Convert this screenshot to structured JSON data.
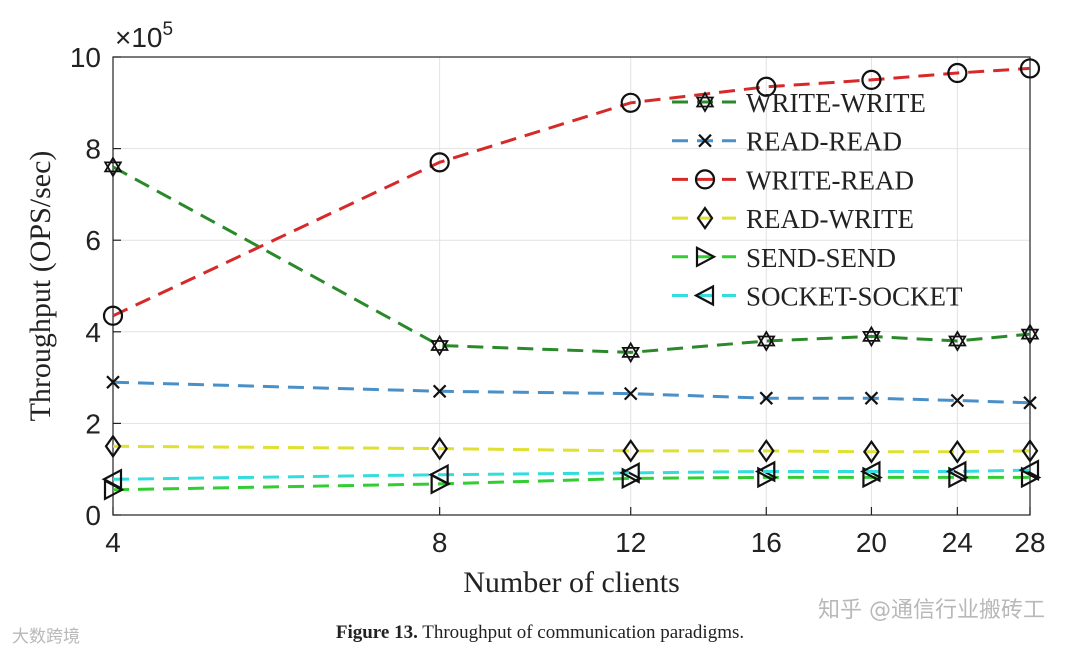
{
  "figure_caption": {
    "label": "Figure 13.",
    "text": "Throughput of communication paradigms."
  },
  "watermarks": {
    "left": "大数跨境",
    "right": "知乎 @通信行业搬砖工"
  },
  "chart_data": {
    "type": "line",
    "title": "",
    "xlabel": "Number of clients",
    "ylabel": "Throughput (OPS/sec)",
    "y_exponent_label": "×10",
    "y_exponent_power": "5",
    "x": [
      4,
      8,
      12,
      16,
      20,
      24,
      28
    ],
    "xticks": [
      "4",
      "8",
      "12",
      "16",
      "20",
      "24",
      "28"
    ],
    "yticks": [
      "0",
      "2",
      "4",
      "6",
      "8",
      "10"
    ],
    "xlim": [
      4,
      28
    ],
    "ylim": [
      0,
      10
    ],
    "x_scale": "log",
    "grid": true,
    "legend_position": "top-right",
    "series": [
      {
        "name": "WRITE-WRITE",
        "color": "#2a8a2a",
        "marker": "hexagram",
        "values": [
          7.6,
          3.7,
          3.55,
          3.8,
          3.9,
          3.8,
          3.95
        ]
      },
      {
        "name": "READ-READ",
        "color": "#4a90c8",
        "marker": "x",
        "values": [
          2.9,
          2.7,
          2.65,
          2.55,
          2.55,
          2.5,
          2.45
        ]
      },
      {
        "name": "WRITE-READ",
        "color": "#d62a2a",
        "marker": "circle",
        "values": [
          4.35,
          7.7,
          9.0,
          9.35,
          9.5,
          9.65,
          9.75
        ]
      },
      {
        "name": "READ-WRITE",
        "color": "#e0e030",
        "marker": "diamond",
        "values": [
          1.5,
          1.45,
          1.4,
          1.4,
          1.38,
          1.38,
          1.4
        ]
      },
      {
        "name": "SEND-SEND",
        "color": "#33cc33",
        "marker": "triangle-right",
        "values": [
          0.55,
          0.68,
          0.8,
          0.82,
          0.82,
          0.82,
          0.82
        ]
      },
      {
        "name": "SOCKET-SOCKET",
        "color": "#33dddd",
        "marker": "triangle-left",
        "values": [
          0.78,
          0.88,
          0.92,
          0.95,
          0.95,
          0.95,
          0.98
        ]
      }
    ]
  }
}
